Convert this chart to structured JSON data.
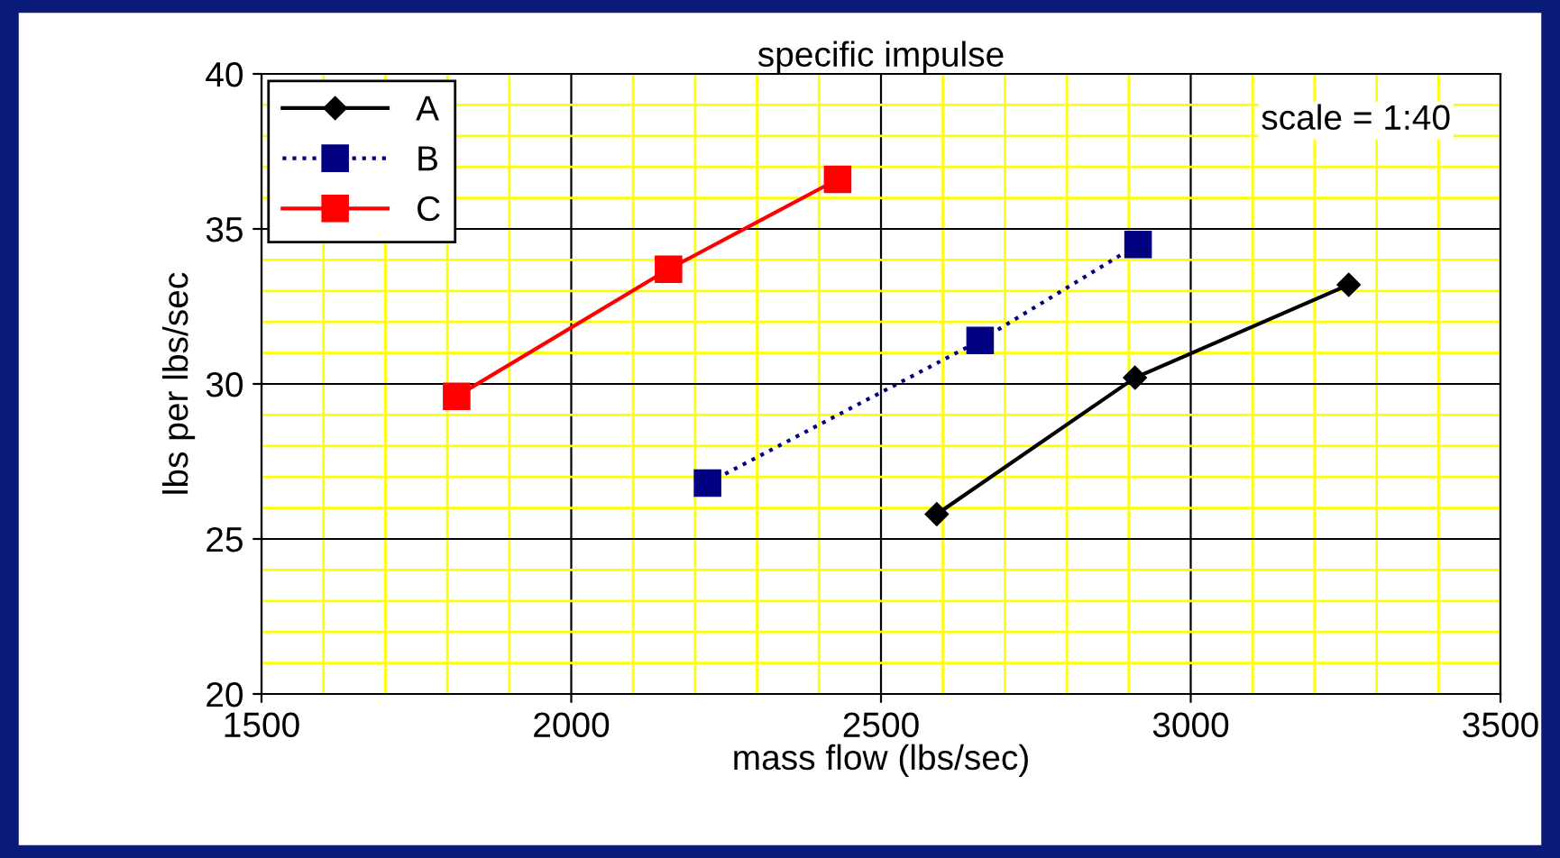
{
  "chart_data": {
    "type": "line",
    "title": "specific impulse",
    "xlabel": "mass flow (lbs/sec)",
    "ylabel": "lbs per lbs/sec",
    "xlim": [
      1500,
      3500
    ],
    "xticks": [
      1500,
      {
        "value": 1600,
        "label": null
      },
      {
        "value": 1700,
        "label": null
      },
      {
        "value": 1800,
        "label": null
      },
      {
        "value": 1900,
        "label": null
      },
      2000,
      {
        "value": 2100,
        "label": null
      },
      {
        "value": 2200,
        "label": null
      },
      {
        "value": 2300,
        "label": null
      },
      {
        "value": 2400,
        "label": null
      },
      2500,
      {
        "value": 2600,
        "label": null
      },
      {
        "value": 2700,
        "label": null
      },
      {
        "value": 2800,
        "label": null
      },
      {
        "value": 2900,
        "label": null
      },
      3000,
      {
        "value": 3100,
        "label": null
      },
      {
        "value": 3200,
        "label": null
      },
      {
        "value": 3300,
        "label": null
      },
      {
        "value": 3400,
        "label": null
      },
      3500
    ],
    "ylim": [
      20,
      40
    ],
    "yticks": [
      20,
      {
        "value": 21,
        "label": null
      },
      {
        "value": 22,
        "label": null
      },
      {
        "value": 23,
        "label": null
      },
      {
        "value": 24,
        "label": null
      },
      25,
      {
        "value": 26,
        "label": null
      },
      {
        "value": 27,
        "label": null
      },
      {
        "value": 28,
        "label": null
      },
      {
        "value": 29,
        "label": null
      },
      30,
      {
        "value": 31,
        "label": null
      },
      {
        "value": 32,
        "label": null
      },
      {
        "value": 33,
        "label": null
      },
      {
        "value": 34,
        "label": null
      },
      35,
      {
        "value": 36,
        "label": null
      },
      {
        "value": 37,
        "label": null
      },
      {
        "value": 38,
        "label": null
      },
      {
        "value": 39,
        "label": null
      },
      40
    ],
    "grid": true,
    "legend": "top left",
    "annotations": [
      "scale = 1:40"
    ],
    "series": [
      {
        "name": "A",
        "color": "#000000",
        "marker": "diamond",
        "line_style": "solid",
        "x": [
          2590,
          2910,
          3255
        ],
        "values": [
          25.8,
          30.2,
          33.2
        ]
      },
      {
        "name": "B",
        "color": "#000080",
        "marker": "square",
        "line_style": "dotted",
        "x": [
          2220,
          2660,
          2915
        ],
        "values": [
          26.8,
          31.4,
          34.5
        ]
      },
      {
        "name": "C",
        "color": "#ff0000",
        "marker": "square",
        "line_style": "solid",
        "x": [
          1815,
          2157,
          2430
        ],
        "values": [
          29.6,
          33.7,
          36.6
        ]
      }
    ]
  }
}
